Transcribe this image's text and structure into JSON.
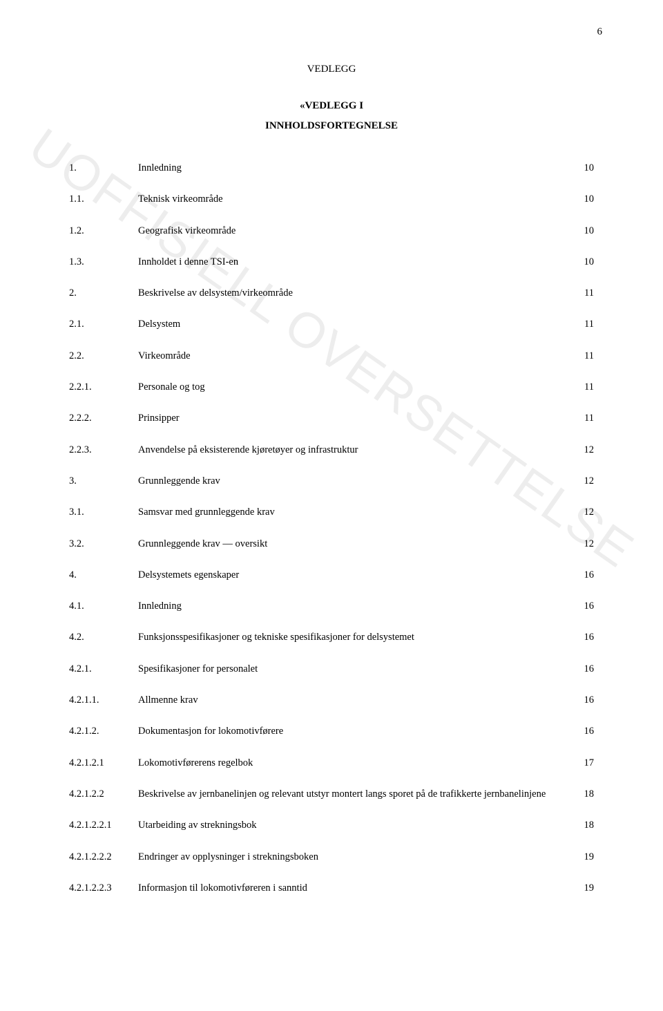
{
  "page_number": "6",
  "heading": {
    "vedlegg": "VEDLEGG",
    "sub": "«VEDLEGG I",
    "sub2": "INNHOLDSFORTEGNELSE"
  },
  "watermark": "UOFFISIELL OVERSETTELSE",
  "toc": [
    {
      "num": "1.",
      "text": "Innledning",
      "page": "10"
    },
    {
      "num": "1.1.",
      "text": "Teknisk virkeområde",
      "page": "10"
    },
    {
      "num": "1.2.",
      "text": "Geografisk virkeområde",
      "page": "10"
    },
    {
      "num": "1.3.",
      "text": "Innholdet i denne TSI-en",
      "page": "10"
    },
    {
      "num": "2.",
      "text": "Beskrivelse av delsystem/virkeområde",
      "page": "11"
    },
    {
      "num": "2.1.",
      "text": "Delsystem",
      "page": "11"
    },
    {
      "num": "2.2.",
      "text": "Virkeområde",
      "page": "11"
    },
    {
      "num": "2.2.1.",
      "text": "Personale og tog",
      "page": "11"
    },
    {
      "num": "2.2.2.",
      "text": "Prinsipper",
      "page": "11"
    },
    {
      "num": "2.2.3.",
      "text": "Anvendelse på eksisterende kjøretøyer og infrastruktur",
      "page": "12"
    },
    {
      "num": "3.",
      "text": "Grunnleggende krav",
      "page": "12"
    },
    {
      "num": "3.1.",
      "text": "Samsvar med grunnleggende krav",
      "page": "12"
    },
    {
      "num": "3.2.",
      "text": "Grunnleggende krav — oversikt",
      "page": "12"
    },
    {
      "num": "4.",
      "text": "Delsystemets egenskaper",
      "page": "16"
    },
    {
      "num": "4.1.",
      "text": "Innledning",
      "page": "16"
    },
    {
      "num": "4.2.",
      "text": "Funksjonsspesifikasjoner og tekniske spesifikasjoner for delsystemet",
      "page": "16"
    },
    {
      "num": "4.2.1.",
      "text": "Spesifikasjoner for personalet",
      "page": "16"
    },
    {
      "num": "4.2.1.1.",
      "text": "Allmenne krav",
      "page": "16"
    },
    {
      "num": "4.2.1.2.",
      "text": "Dokumentasjon for lokomotivførere",
      "page": "16"
    },
    {
      "num": "4.2.1.2.1",
      "text": "Lokomotivførerens regelbok",
      "page": "17"
    },
    {
      "num": "4.2.1.2.2",
      "text": "Beskrivelse av jernbanelinjen og relevant utstyr montert langs sporet på de trafikkerte jernbanelinjene",
      "page": "18"
    },
    {
      "num": "4.2.1.2.2.1",
      "text": "Utarbeiding av strekningsbok",
      "page": "18"
    },
    {
      "num": "4.2.1.2.2.2",
      "text": "Endringer av opplysninger i strekningsboken",
      "page": "19"
    },
    {
      "num": "4.2.1.2.2.3",
      "text": "Informasjon til lokomotivføreren i sanntid",
      "page": "19"
    }
  ]
}
